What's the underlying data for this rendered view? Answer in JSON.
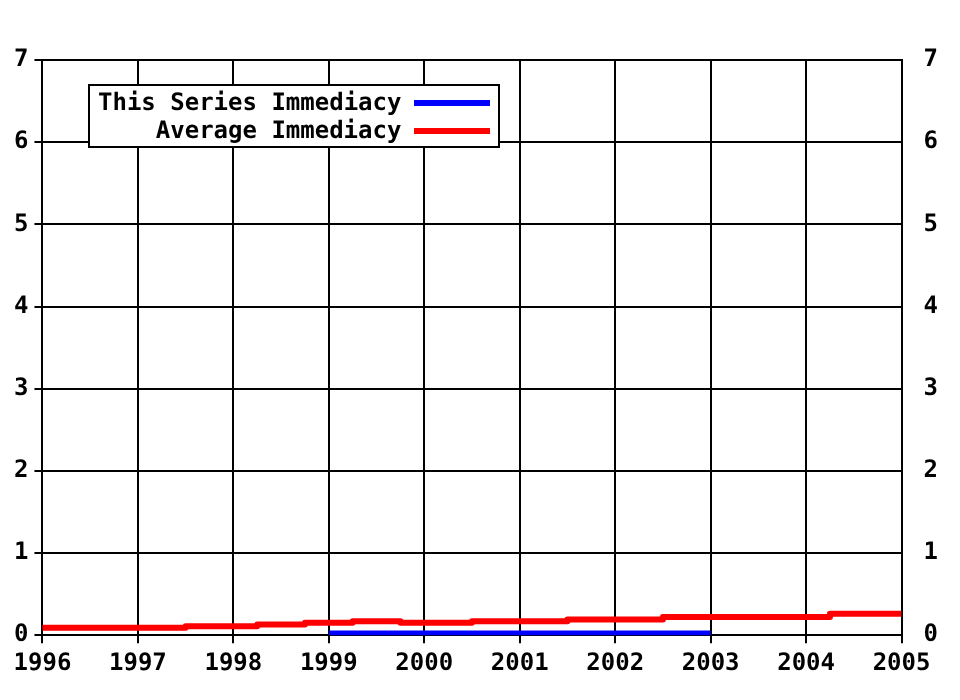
{
  "chart_data": {
    "type": "step",
    "xlim": [
      1996,
      2005
    ],
    "xticks": [
      1996,
      1997,
      1998,
      1999,
      2000,
      2001,
      2002,
      2003,
      2004,
      2005
    ],
    "ylim": [
      0,
      7
    ],
    "yticks": [
      0,
      1,
      2,
      3,
      4,
      5,
      6,
      7
    ],
    "y2lim": [
      0,
      7
    ],
    "y2ticks": [
      0,
      1,
      2,
      3,
      4,
      5,
      6,
      7
    ],
    "grid": true,
    "legend": "top left",
    "series": [
      {
        "name": "This Series Immediacy",
        "color": "#0000ff",
        "x": [
          1999,
          2003
        ],
        "values": [
          0.02,
          0.02
        ]
      },
      {
        "name": "Average Immediacy",
        "color": "#ff0000",
        "x": [
          1996,
          1997.5,
          1998.25,
          1998.75,
          1999.25,
          1999.75,
          2000.5,
          2001.5,
          2002.5,
          2004.25,
          2004.75,
          2005
        ],
        "values": [
          0.07,
          0.09,
          0.11,
          0.13,
          0.15,
          0.17,
          0.15,
          0.17,
          0.19,
          0.22,
          0.26,
          0.26
        ]
      }
    ]
  }
}
